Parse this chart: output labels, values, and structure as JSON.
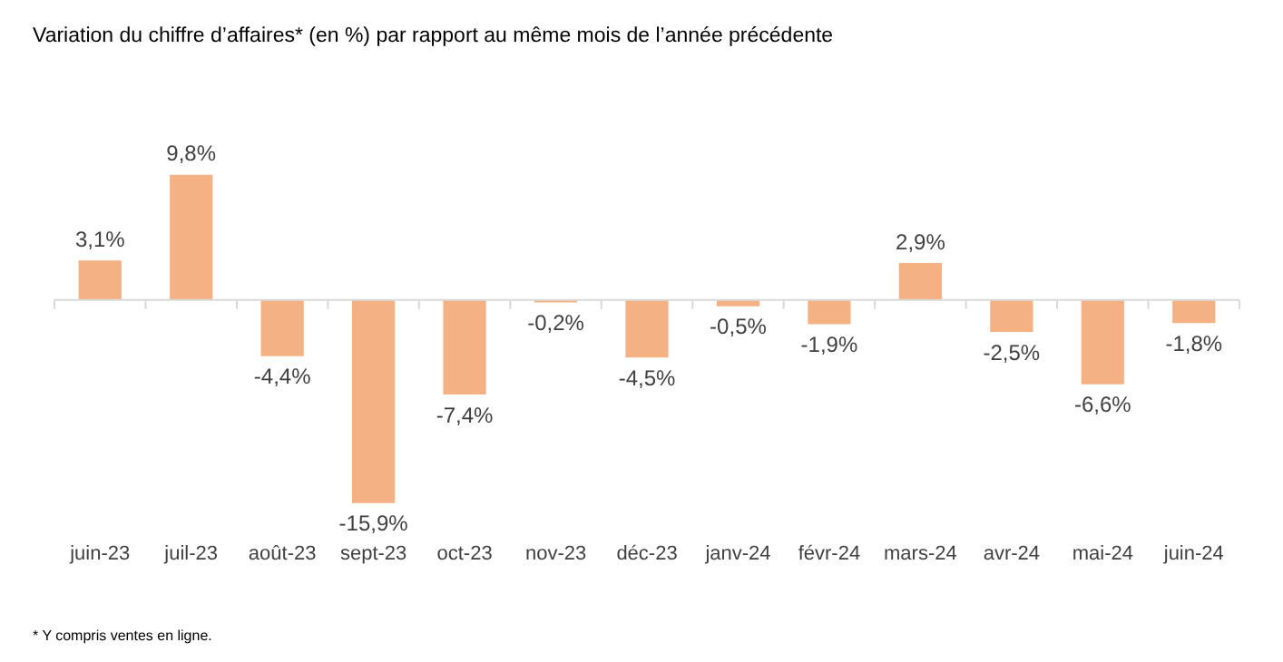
{
  "chart_data": {
    "type": "bar",
    "title": "Variation du chiffre d’affaires* (en %) par rapport au même mois de l’année précédente",
    "categories": [
      "juin-23",
      "juil-23",
      "août-23",
      "sept-23",
      "oct-23",
      "nov-23",
      "déc-23",
      "janv-24",
      "févr-24",
      "mars-24",
      "avr-24",
      "mai-24",
      "juin-24"
    ],
    "values": [
      3.1,
      9.8,
      -4.4,
      -15.9,
      -7.4,
      -0.2,
      -4.5,
      -0.5,
      -1.9,
      2.9,
      -2.5,
      -6.6,
      -1.8
    ],
    "value_labels": [
      "3,1%",
      "9,8%",
      "-4,4%",
      "-15,9%",
      "-7,4%",
      "-0,2%",
      "-4,5%",
      "-0,5%",
      "-1,9%",
      "2,9%",
      "-2,5%",
      "-6,6%",
      "-1,8%"
    ],
    "color": "#f4b183",
    "grid": false,
    "legend": false,
    "annotations": [
      "* Y compris ventes en ligne."
    ]
  }
}
